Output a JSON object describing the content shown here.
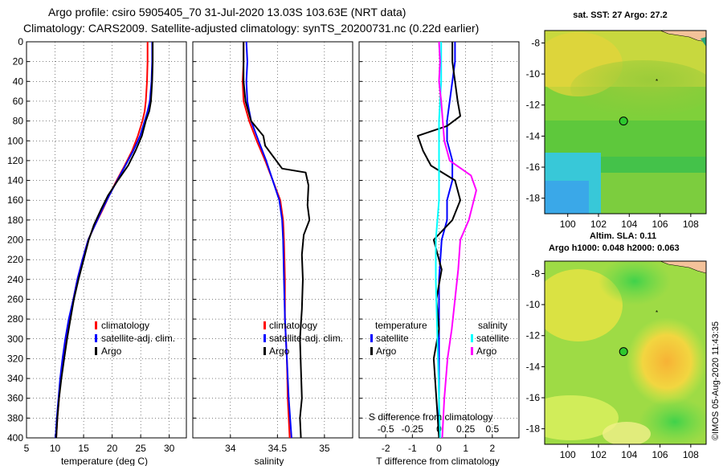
{
  "header": {
    "line1": "Argo profile: csiro 5905405_70 31-Jul-2020 13.03S 103.63E (NRT data)",
    "line2": "Climatology: CARS2009. Satellite-adjusted climatology: synTS_20200731.nc (0.22d earlier)"
  },
  "chart_data": [
    {
      "type": "line",
      "id": "temperature",
      "xlabel": "temperature (deg C)",
      "ylabel": "",
      "xlim": [
        5,
        33
      ],
      "ylim": [
        400,
        0
      ],
      "xticks": [
        "5",
        "10",
        "15",
        "20",
        "25",
        "30"
      ],
      "yticks": [
        "0",
        "20",
        "40",
        "60",
        "80",
        "100",
        "120",
        "140",
        "160",
        "180",
        "200",
        "220",
        "240",
        "260",
        "280",
        "300",
        "320",
        "340",
        "360",
        "380",
        "400"
      ],
      "legend": [
        "climatology",
        "satellite-adj. clim.",
        "Argo"
      ],
      "legend_position": "lower-right",
      "series": [
        {
          "name": "climatology",
          "color": "#ff0000",
          "points": [
            [
              26.2,
              0
            ],
            [
              26.2,
              20
            ],
            [
              26.1,
              40
            ],
            [
              25.9,
              60
            ],
            [
              25.7,
              70
            ],
            [
              25.3,
              80
            ],
            [
              24.5,
              95
            ],
            [
              23.5,
              110
            ],
            [
              22.2,
              125
            ],
            [
              20.8,
              140
            ],
            [
              19.5,
              155
            ],
            [
              18.3,
              170
            ],
            [
              17.0,
              185
            ],
            [
              15.8,
              200
            ],
            [
              14.8,
              220
            ],
            [
              13.9,
              240
            ],
            [
              13.2,
              260
            ],
            [
              12.5,
              280
            ],
            [
              11.9,
              300
            ],
            [
              11.4,
              320
            ],
            [
              11.0,
              340
            ],
            [
              10.7,
              360
            ],
            [
              10.4,
              380
            ],
            [
              10.2,
              400
            ]
          ]
        },
        {
          "name": "satellite-adj. clim.",
          "color": "#0000ff",
          "points": [
            [
              27.0,
              0
            ],
            [
              27.0,
              20
            ],
            [
              26.9,
              40
            ],
            [
              26.6,
              60
            ],
            [
              26.2,
              70
            ],
            [
              25.7,
              80
            ],
            [
              24.9,
              95
            ],
            [
              23.7,
              110
            ],
            [
              22.3,
              125
            ],
            [
              20.9,
              140
            ],
            [
              19.5,
              155
            ],
            [
              18.2,
              170
            ],
            [
              17.0,
              185
            ],
            [
              15.8,
              200
            ],
            [
              14.8,
              220
            ],
            [
              13.9,
              240
            ],
            [
              13.2,
              260
            ],
            [
              12.4,
              280
            ],
            [
              11.8,
              300
            ],
            [
              11.3,
              320
            ],
            [
              10.9,
              340
            ],
            [
              10.6,
              360
            ],
            [
              10.3,
              380
            ],
            [
              10.1,
              400
            ]
          ]
        },
        {
          "name": "Argo",
          "color": "#000000",
          "points": [
            [
              27.1,
              0
            ],
            [
              27.1,
              20
            ],
            [
              27.0,
              40
            ],
            [
              26.8,
              60
            ],
            [
              26.5,
              70
            ],
            [
              25.9,
              80
            ],
            [
              25.2,
              95
            ],
            [
              24.1,
              110
            ],
            [
              22.8,
              125
            ],
            [
              21.0,
              140
            ],
            [
              19.3,
              155
            ],
            [
              18.0,
              170
            ],
            [
              16.8,
              185
            ],
            [
              15.9,
              200
            ],
            [
              15.0,
              220
            ],
            [
              14.1,
              240
            ],
            [
              13.3,
              260
            ],
            [
              12.7,
              280
            ],
            [
              12.1,
              300
            ],
            [
              11.6,
              320
            ],
            [
              11.1,
              340
            ],
            [
              10.7,
              360
            ],
            [
              10.4,
              380
            ],
            [
              10.2,
              400
            ]
          ]
        }
      ]
    },
    {
      "type": "line",
      "id": "salinity",
      "xlabel": "salinity",
      "xlim": [
        33.6,
        35.3
      ],
      "ylim": [
        400,
        0
      ],
      "xticks": [
        "34",
        "34.5",
        "35"
      ],
      "legend": [
        "climatology",
        "satellite-adj. clim.",
        "Argo"
      ],
      "legend_position": "lower-right",
      "series": [
        {
          "name": "climatology",
          "color": "#ff0000",
          "points": [
            [
              34.14,
              0
            ],
            [
              34.14,
              20
            ],
            [
              34.13,
              40
            ],
            [
              34.14,
              60
            ],
            [
              34.2,
              80
            ],
            [
              34.28,
              100
            ],
            [
              34.37,
              120
            ],
            [
              34.45,
              140
            ],
            [
              34.53,
              160
            ],
            [
              34.56,
              180
            ],
            [
              34.57,
              200
            ],
            [
              34.58,
              240
            ],
            [
              34.58,
              280
            ],
            [
              34.6,
              320
            ],
            [
              34.61,
              360
            ],
            [
              34.63,
              400
            ]
          ]
        },
        {
          "name": "satellite-adj. clim.",
          "color": "#0000ff",
          "points": [
            [
              34.17,
              0
            ],
            [
              34.18,
              20
            ],
            [
              34.17,
              40
            ],
            [
              34.18,
              60
            ],
            [
              34.22,
              80
            ],
            [
              34.3,
              100
            ],
            [
              34.38,
              120
            ],
            [
              34.45,
              140
            ],
            [
              34.52,
              160
            ],
            [
              34.55,
              180
            ],
            [
              34.56,
              200
            ],
            [
              34.57,
              240
            ],
            [
              34.58,
              280
            ],
            [
              34.6,
              320
            ],
            [
              34.62,
              360
            ],
            [
              34.65,
              400
            ]
          ]
        },
        {
          "name": "Argo",
          "color": "#000000",
          "points": [
            [
              34.14,
              0
            ],
            [
              34.14,
              20
            ],
            [
              34.14,
              40
            ],
            [
              34.16,
              60
            ],
            [
              34.22,
              80
            ],
            [
              34.35,
              95
            ],
            [
              34.37,
              105
            ],
            [
              34.55,
              128
            ],
            [
              34.8,
              132
            ],
            [
              34.83,
              145
            ],
            [
              34.82,
              165
            ],
            [
              34.84,
              180
            ],
            [
              34.78,
              195
            ],
            [
              34.76,
              215
            ],
            [
              34.77,
              240
            ],
            [
              34.76,
              270
            ],
            [
              34.74,
              300
            ],
            [
              34.75,
              330
            ],
            [
              34.76,
              360
            ],
            [
              34.74,
              380
            ],
            [
              34.75,
              400
            ]
          ]
        }
      ]
    },
    {
      "type": "line",
      "id": "difference",
      "xlabel": "T difference from climatology",
      "xlabel_top": "S difference from climatology",
      "xlim": [
        -3,
        3
      ],
      "xlim_salinity": [
        -0.75,
        0.75
      ],
      "ylim": [
        400,
        0
      ],
      "xticks": [
        "-2",
        "-1",
        "0",
        "1",
        "2"
      ],
      "xticks_salinity": [
        "-0.5",
        "-0.25",
        "0",
        "0.25",
        "0.5"
      ],
      "legend_left_title": "temperature",
      "legend_right_title": "salinity",
      "legend_left": [
        "satellite",
        "Argo"
      ],
      "legend_right": [
        "satellite",
        "Argo"
      ],
      "series": [
        {
          "name": "temperature satellite",
          "color": "#0000ff",
          "points": [
            [
              0.6,
              0
            ],
            [
              0.6,
              20
            ],
            [
              0.5,
              40
            ],
            [
              0.4,
              60
            ],
            [
              0.3,
              80
            ],
            [
              0.3,
              100
            ],
            [
              0.5,
              120
            ],
            [
              0.5,
              140
            ],
            [
              0.3,
              160
            ],
            [
              0.3,
              180
            ],
            [
              0.1,
              200
            ],
            [
              0.0,
              240
            ],
            [
              0.0,
              280
            ],
            [
              0.0,
              320
            ],
            [
              0.0,
              360
            ],
            [
              0.0,
              400
            ]
          ]
        },
        {
          "name": "temperature Argo",
          "color": "#000000",
          "points": [
            [
              0.5,
              0
            ],
            [
              0.5,
              20
            ],
            [
              0.6,
              40
            ],
            [
              0.7,
              60
            ],
            [
              0.8,
              75
            ],
            [
              0.3,
              85
            ],
            [
              -0.8,
              95
            ],
            [
              -0.6,
              110
            ],
            [
              -0.3,
              125
            ],
            [
              0.6,
              140
            ],
            [
              0.8,
              160
            ],
            [
              0.5,
              180
            ],
            [
              -0.2,
              200
            ],
            [
              0.1,
              230
            ],
            [
              -0.1,
              260
            ],
            [
              0.0,
              290
            ],
            [
              -0.2,
              320
            ],
            [
              -0.1,
              360
            ],
            [
              0.0,
              400
            ]
          ]
        },
        {
          "name": "salinity satellite",
          "color": "#00ffff",
          "points": [
            [
              0.02,
              0
            ],
            [
              0.02,
              40
            ],
            [
              0.0,
              80
            ],
            [
              0.0,
              120
            ],
            [
              0.0,
              160
            ],
            [
              -0.03,
              200
            ],
            [
              -0.03,
              240
            ],
            [
              -0.02,
              280
            ],
            [
              -0.01,
              320
            ],
            [
              0.0,
              360
            ],
            [
              0.01,
              400
            ]
          ]
        },
        {
          "name": "salinity Argo",
          "color": "#ff00ff",
          "points": [
            [
              0.0,
              0
            ],
            [
              0.01,
              20
            ],
            [
              0.0,
              40
            ],
            [
              0.02,
              60
            ],
            [
              0.05,
              100
            ],
            [
              0.1,
              120
            ],
            [
              0.3,
              135
            ],
            [
              0.35,
              150
            ],
            [
              0.28,
              180
            ],
            [
              0.2,
              200
            ],
            [
              0.18,
              230
            ],
            [
              0.15,
              260
            ],
            [
              0.12,
              290
            ],
            [
              0.08,
              320
            ],
            [
              0.05,
              360
            ],
            [
              0.03,
              400
            ]
          ]
        }
      ]
    }
  ],
  "maps": [
    {
      "title": "sat. SST: 27 Argo: 27.2",
      "xticks": [
        "100",
        "102",
        "104",
        "106",
        "108"
      ],
      "yticks": [
        "-8",
        "-10",
        "-12",
        "-14",
        "-16",
        "-18"
      ],
      "lon_range": [
        98.5,
        109
      ],
      "lat_range": [
        -19,
        -7.2
      ],
      "argo_marker": [
        103.63,
        -13.03
      ]
    },
    {
      "title_line1": "Altim. SLA: 0.11",
      "title_line2": "Argo h1000: 0.048 h2000: 0.063",
      "xticks": [
        "100",
        "102",
        "104",
        "106",
        "108"
      ],
      "yticks": [
        "-8",
        "-10",
        "-12",
        "-14",
        "-16",
        "-18"
      ],
      "lon_range": [
        98.5,
        109
      ],
      "lat_range": [
        -19,
        -7.2
      ],
      "argo_marker": [
        103.63,
        -13.03
      ]
    }
  ],
  "watermark": "©IMOS 05-Aug-2020 11:43:35",
  "colors": {
    "red": "#ff0000",
    "blue": "#0000ff",
    "black": "#000000",
    "cyan": "#00ffff",
    "magenta": "#ff00ff"
  }
}
